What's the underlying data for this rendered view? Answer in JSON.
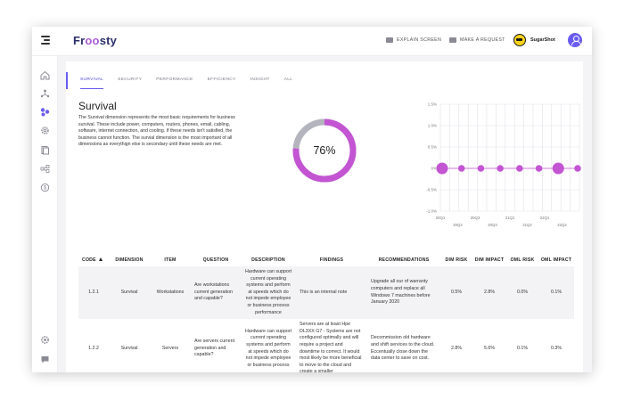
{
  "app": {
    "logo_prefix": "Fr",
    "logo_oo": "oo",
    "logo_suffix": "sty",
    "explain_label": "EXPLAIN SCREEN",
    "request_label": "MAKE A REQUEST",
    "user_name": "SugarShot"
  },
  "tabs": [
    "SURVIVAL",
    "SECURITY",
    "PERFORMANCE",
    "EFFICIENCY",
    "INSIGHT",
    "ALL"
  ],
  "active_tab": 0,
  "section": {
    "title": "Survival",
    "description": "The Survival dimension represents the most basic requirements for business survival. These include power, computers, routers, phones, email, cabling, software, internet connection, and cooling. If these needs isn't satisfied, the business cannot function. The survial dimension is the most important of all dimensions as everythign else is secondary until these needs are met."
  },
  "donut": {
    "label": "76%",
    "value": 0.76,
    "fill_color": "#c355d3",
    "track_color": "#b4b4be"
  },
  "chart_data": {
    "type": "scatter",
    "y_ticks": [
      "1.5%",
      "1.0%",
      "0.5%",
      "0%",
      "-0.5%",
      "-1.0%"
    ],
    "x_ticks_top": [
      "20Q1",
      "20Q3",
      "21Q1",
      "22Q1"
    ],
    "x_ticks_bottom": [
      "20Q2",
      "20Q4",
      "21Q2",
      "22Q2"
    ],
    "ylim": [
      -1.0,
      1.5
    ],
    "grid": true,
    "series": [
      {
        "values": [
          0,
          0,
          0,
          0,
          0,
          0,
          0,
          0
        ],
        "sizes": [
          3,
          1,
          1,
          1,
          1,
          1,
          3,
          1
        ],
        "color": "#c355d3"
      }
    ]
  },
  "table": {
    "headers": [
      "CODE",
      "DIMENSION",
      "ITEM",
      "QUESTION",
      "DESCRIPTION",
      "FINDINGS",
      "RECOMMENDATIONS",
      "DIM RISK",
      "DIM IMPACT",
      "OML RISK",
      "OML IMPACT"
    ],
    "rows": [
      {
        "code": "1.2.1",
        "dimension": "Survival",
        "item": "Workstations",
        "question": "Are workstations current generation and capable?",
        "description": "Hardware can support current operating systems and perform at speeds which do not impede employee or business process performance",
        "findings": "This is an internal note",
        "recommendations": "Upgrade all our of warranty computers and replace all Windows 7 machines before January 2020",
        "dim_risk": "0.5%",
        "dim_impact": "2.8%",
        "oml_risk": "0.0%",
        "oml_impact": "0.1%"
      },
      {
        "code": "1.2.2",
        "dimension": "Survival",
        "item": "Servers",
        "question": "Are servers current generation and capable?",
        "description": "Hardware can support current operating systems and perform at speeds which do not impede employee or business process",
        "findings": "Servers are at least Hpe DL3XX G7 - Systems are not configured optimally and will require a project and downtime to correct. It would most likely be more beneficial to move to the cloud and create a smaller",
        "recommendations": "Decommission old hardware and shift services to the cloud. Eccentually close down the data center to save on cost.",
        "dim_risk": "2.8%",
        "dim_impact": "5.6%",
        "oml_risk": "0.1%",
        "oml_impact": "0.3%"
      }
    ]
  }
}
